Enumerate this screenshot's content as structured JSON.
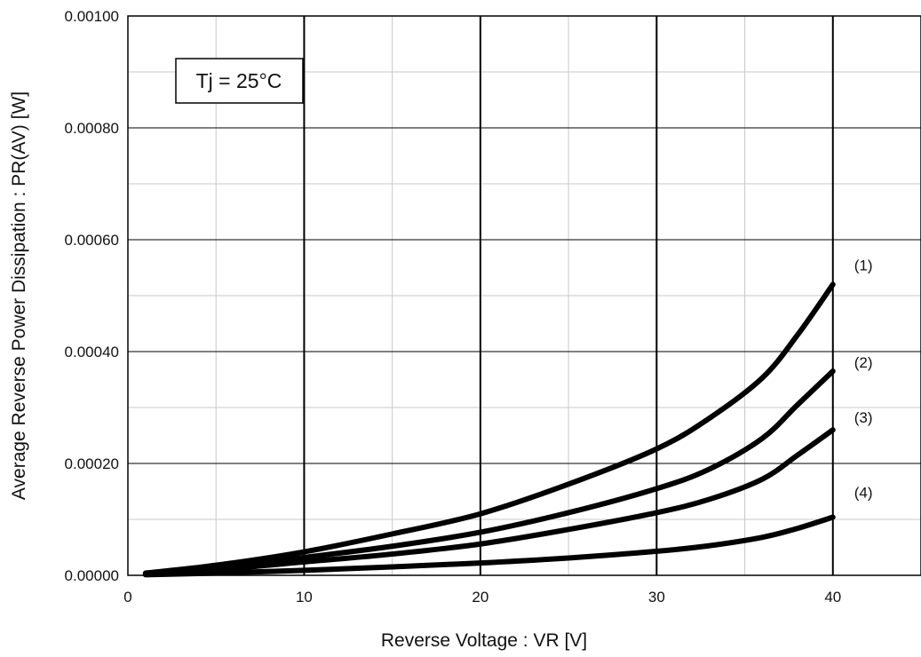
{
  "chart_data": {
    "type": "line",
    "title": "",
    "xlabel": "Reverse Voltage : VR [V]",
    "ylabel": "Average Reverse Power Dissipation : PR(AV) [W]",
    "xlim": [
      0,
      45
    ],
    "ylim": [
      0,
      0.001
    ],
    "xticks": [
      0,
      10,
      20,
      30,
      40
    ],
    "xtick_labels": [
      "0",
      "10",
      "20",
      "30",
      "40"
    ],
    "yticks": [
      0,
      0.0002,
      0.0004,
      0.0006,
      0.0008,
      0.001
    ],
    "ytick_labels": [
      "0.00000",
      "0.00020",
      "0.00040",
      "0.00060",
      "0.00080",
      "0.00100"
    ],
    "grid": true,
    "legend": "none",
    "annotation": "Tj = 25°C",
    "series_color": "#000000",
    "series": [
      {
        "label": "(1)",
        "x": [
          1,
          5,
          10,
          15,
          20,
          25,
          30,
          33,
          36,
          38,
          40
        ],
        "y": [
          4e-06,
          1.8e-05,
          4.2e-05,
          7.4e-05,
          0.00011,
          0.000163,
          0.000226,
          0.000281,
          0.000353,
          0.00043,
          0.00052
        ]
      },
      {
        "label": "(2)",
        "x": [
          1,
          5,
          10,
          15,
          20,
          25,
          30,
          33,
          36,
          38,
          40
        ],
        "y": [
          3e-06,
          1.3e-05,
          3.2e-05,
          5.2e-05,
          7.7e-05,
          0.000112,
          0.000155,
          0.00019,
          0.000245,
          0.000305,
          0.000365
        ]
      },
      {
        "label": "(3)",
        "x": [
          1,
          5,
          10,
          15,
          20,
          25,
          30,
          33,
          36,
          38,
          40
        ],
        "y": [
          2e-06,
          1e-05,
          2.4e-05,
          3.8e-05,
          5.6e-05,
          8.2e-05,
          0.000112,
          0.000136,
          0.000172,
          0.000215,
          0.00026
        ]
      },
      {
        "label": "(4)",
        "x": [
          1,
          5,
          10,
          15,
          20,
          25,
          30,
          33,
          36,
          38,
          40
        ],
        "y": [
          1e-06,
          4e-06,
          9e-06,
          1.5e-05,
          2.2e-05,
          3.1e-05,
          4.3e-05,
          5.3e-05,
          6.8e-05,
          8.4e-05,
          0.000104
        ]
      }
    ]
  }
}
